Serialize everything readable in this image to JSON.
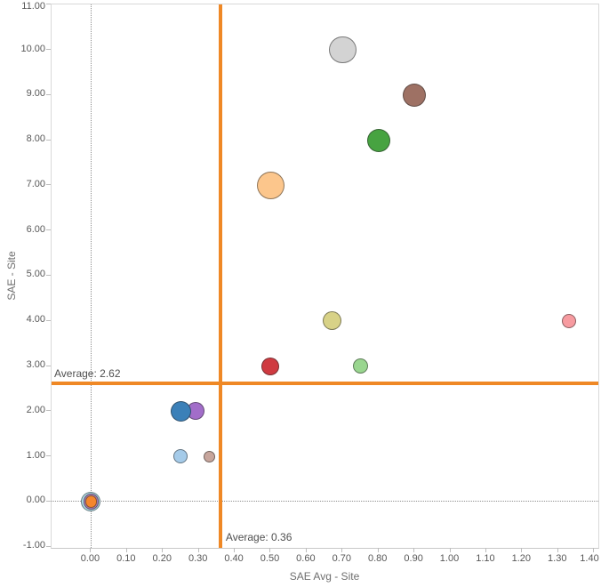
{
  "chart_data": {
    "type": "scatter",
    "title": "",
    "xlabel": "SAE Avg - Site",
    "ylabel": "SAE - Site",
    "xlim": [
      -0.11,
      1.412
    ],
    "ylim": [
      -1.024,
      11.004
    ],
    "grid": false,
    "legend": "none",
    "x_ticks": [
      {
        "v": 0.0,
        "label": "0.00"
      },
      {
        "v": 0.1,
        "label": "0.10"
      },
      {
        "v": 0.2,
        "label": "0.20"
      },
      {
        "v": 0.3,
        "label": "0.30"
      },
      {
        "v": 0.4,
        "label": "0.40"
      },
      {
        "v": 0.5,
        "label": "0.50"
      },
      {
        "v": 0.6,
        "label": "0.60"
      },
      {
        "v": 0.7,
        "label": "0.70"
      },
      {
        "v": 0.8,
        "label": "0.80"
      },
      {
        "v": 0.9,
        "label": "0.90"
      },
      {
        "v": 1.0,
        "label": "1.00"
      },
      {
        "v": 1.1,
        "label": "1.10"
      },
      {
        "v": 1.2,
        "label": "1.20"
      },
      {
        "v": 1.3,
        "label": "1.30"
      },
      {
        "v": 1.4,
        "label": "1.40"
      }
    ],
    "y_ticks": [
      {
        "v": -1.0,
        "label": "-1.00"
      },
      {
        "v": 0.0,
        "label": "0.00"
      },
      {
        "v": 1.0,
        "label": "1.00"
      },
      {
        "v": 2.0,
        "label": "2.00"
      },
      {
        "v": 3.0,
        "label": "3.00"
      },
      {
        "v": 4.0,
        "label": "4.00"
      },
      {
        "v": 5.0,
        "label": "5.00"
      },
      {
        "v": 6.0,
        "label": "6.00"
      },
      {
        "v": 7.0,
        "label": "7.00"
      },
      {
        "v": 8.0,
        "label": "8.00"
      },
      {
        "v": 9.0,
        "label": "9.00"
      },
      {
        "v": 10.0,
        "label": "10.00"
      },
      {
        "v": 11.0,
        "label": "11.00"
      }
    ],
    "zero_lines": [
      {
        "axis": "x",
        "v": 0
      },
      {
        "axis": "y",
        "v": 0
      }
    ],
    "ref_lines": [
      {
        "axis": "y",
        "v": 2.62,
        "label": "Average: 2.62",
        "color": "#ef8825"
      },
      {
        "axis": "x",
        "v": 0.36,
        "label": "Average: 0.36",
        "color": "#ef8825"
      }
    ],
    "points": [
      {
        "x": 0.0,
        "y": 0.0,
        "r": 11.0,
        "color": "#abd8e2"
      },
      {
        "x": 0.0,
        "y": 0.0,
        "r": 8.7,
        "color": "#a87fba"
      },
      {
        "x": 0.0,
        "y": 0.0,
        "r": 6.8,
        "color": "#f5862d"
      },
      {
        "x": 0.33,
        "y": 1.0,
        "r": 6.5,
        "color": "#c7a59c"
      },
      {
        "x": 0.25,
        "y": 1.0,
        "r": 8.0,
        "color": "#a5cbe9"
      },
      {
        "x": 0.75,
        "y": 3.0,
        "r": 8.5,
        "color": "#99d68f"
      },
      {
        "x": 1.33,
        "y": 4.0,
        "r": 8.0,
        "color": "#f79ba0"
      },
      {
        "x": 0.5,
        "y": 3.0,
        "r": 10.0,
        "color": "#cf3a40"
      },
      {
        "x": 0.67,
        "y": 4.0,
        "r": 10.5,
        "color": "#d8d287"
      },
      {
        "x": 0.29,
        "y": 2.0,
        "r": 10.0,
        "color": "#a26dc9"
      },
      {
        "x": 0.25,
        "y": 2.0,
        "r": 11.5,
        "color": "#3b80b8"
      },
      {
        "x": 0.5,
        "y": 7.0,
        "r": 15.5,
        "color": "#fcc68c"
      },
      {
        "x": 0.8,
        "y": 8.0,
        "r": 13.0,
        "color": "#47a341"
      },
      {
        "x": 0.9,
        "y": 9.0,
        "r": 13.0,
        "color": "#9e7164"
      },
      {
        "x": 0.7,
        "y": 10.0,
        "r": 15.3,
        "color": "#d3d3d3"
      }
    ]
  },
  "colors": {
    "accent_orange": "#ef8825",
    "axis_text": "#575757",
    "axis_title_text": "#6e6e6e",
    "plot_border": "#d9d9d9",
    "tick_mark": "#bdbdbd",
    "zero_line": "#8f8f8f",
    "background": "#ffffff"
  }
}
